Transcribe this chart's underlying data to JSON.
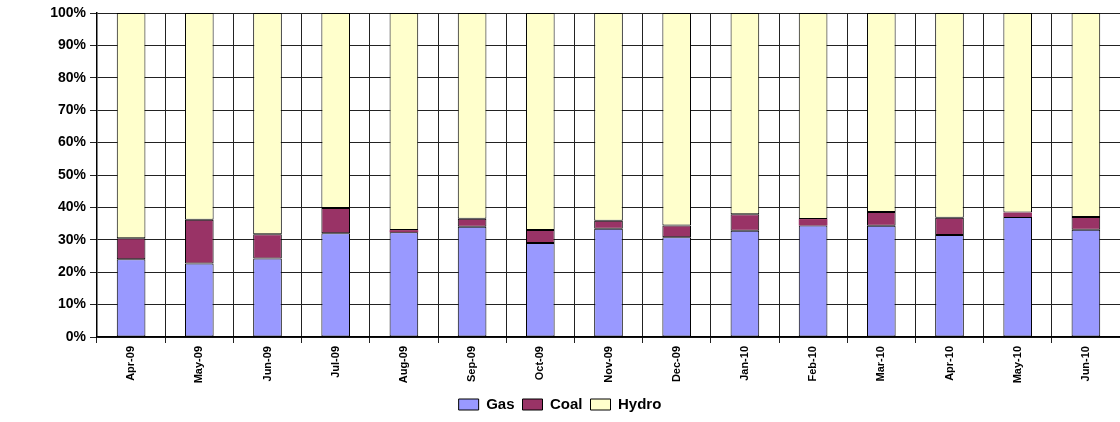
{
  "chart_data": {
    "type": "bar",
    "stacked": true,
    "categories": [
      "Apr-09",
      "May-09",
      "Jun-09",
      "Jul-09",
      "Aug-09",
      "Sep-09",
      "Oct-09",
      "Nov-09",
      "Dec-09",
      "Jan-10",
      "Feb-10",
      "Mar-10",
      "Apr-10",
      "May-10",
      "Jun-10"
    ],
    "series": [
      {
        "name": "Gas",
        "color": "#9999ff",
        "values": [
          24,
          22.7,
          24.2,
          32,
          32.3,
          34,
          29,
          33.4,
          30.8,
          32.8,
          34.4,
          34.3,
          31.5,
          37,
          33.1
        ]
      },
      {
        "name": "Coal",
        "color": "#993366",
        "values": [
          6.5,
          13.5,
          7.5,
          7.8,
          0.7,
          2.5,
          4,
          2.5,
          3.6,
          5.1,
          2,
          4.3,
          5.3,
          1.4,
          3.9
        ]
      },
      {
        "name": "Hydro",
        "color": "#ffffcc",
        "values": [
          69.5,
          63.8,
          68.3,
          60.2,
          67,
          63.5,
          67,
          64.1,
          65.6,
          62.1,
          63.6,
          61.4,
          63.2,
          61.6,
          63
        ]
      }
    ],
    "ylim": [
      0,
      100
    ],
    "yticks": [
      {
        "value": 0,
        "label": "0%"
      },
      {
        "value": 10,
        "label": "10%"
      },
      {
        "value": 20,
        "label": "20%"
      },
      {
        "value": 30,
        "label": "30%"
      },
      {
        "value": 40,
        "label": "40%"
      },
      {
        "value": 50,
        "label": "50%"
      },
      {
        "value": 60,
        "label": "60%"
      },
      {
        "value": 70,
        "label": "70%"
      },
      {
        "value": 80,
        "label": "80%"
      },
      {
        "value": 90,
        "label": "90%"
      },
      {
        "value": 100,
        "label": "100%"
      }
    ],
    "grid": true,
    "legend": "bottom"
  }
}
